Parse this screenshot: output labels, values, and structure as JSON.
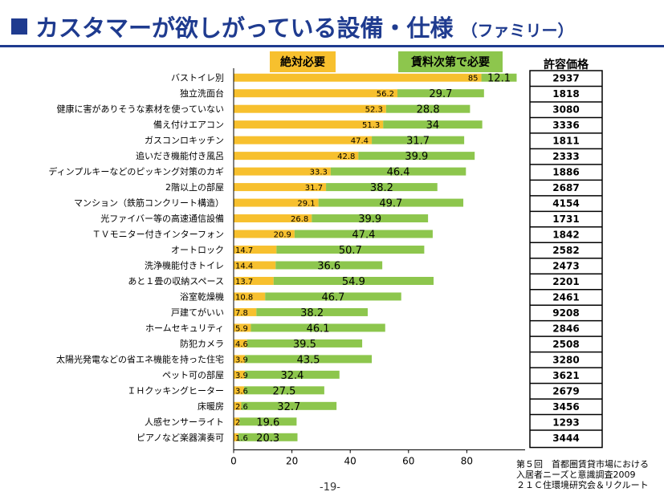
{
  "title": {
    "main": "カスタマーが欲しがっている設備・仕様",
    "sub": "（ファミリー）"
  },
  "legend": {
    "must": "絶対必要",
    "conditional": "賃料次第で必要"
  },
  "price_header": "許容価格",
  "colors": {
    "must": "#f7c02e",
    "conditional": "#8dc64d",
    "title": "#1f3b8f"
  },
  "footer": [
    "第５回　首都圏賃貸市場における",
    "入居者ニーズと意識調査2009",
    "２１Ｃ住環境研究会＆リクルート"
  ],
  "page_number": "-19-",
  "chart_data": {
    "type": "bar",
    "orientation": "horizontal",
    "stacked": true,
    "categories": [
      "バストイレ別",
      "独立洗面台",
      "健康に害がありそうな素材を使っていない",
      "備え付けエアコン",
      "ガスコンロキッチン",
      "追いだき機能付き風呂",
      "ディンプルキーなどのピッキング対策のカギ",
      "2階以上の部屋",
      "マンション（鉄筋コンクリート構造）",
      "光ファイバー等の高速通信設備",
      "ＴＶモニター付きインターフォン",
      "オートロック",
      "洗浄機能付きトイレ",
      "あと１畳の収納スペース",
      "浴室乾燥機",
      "戸建てがいい",
      "ホームセキュリティ",
      "防犯カメラ",
      "太陽光発電などの省エネ機能を持った住宅",
      "ペット可の部屋",
      "ＩＨクッキングヒーター",
      "床暖房",
      "人感センサーライト",
      "ピアノなど楽器演奏可"
    ],
    "series": [
      {
        "name": "絶対必要",
        "values": [
          85,
          56.2,
          52.3,
          51.3,
          47.4,
          42.8,
          33.3,
          31.7,
          29.1,
          26.8,
          20.9,
          14.7,
          14.4,
          13.7,
          10.8,
          7.8,
          5.9,
          4.6,
          3.9,
          3.9,
          3.6,
          2.6,
          2,
          1.6
        ]
      },
      {
        "name": "賃料次第で必要",
        "values": [
          12.1,
          29.7,
          28.8,
          34,
          31.7,
          39.9,
          46.4,
          38.2,
          49.7,
          39.9,
          47.4,
          50.7,
          36.6,
          54.9,
          46.7,
          38.2,
          46.1,
          39.5,
          43.5,
          32.4,
          27.5,
          32.7,
          19.6,
          20.3
        ]
      }
    ],
    "prices": [
      "2937",
      "1818",
      "3080",
      "3336",
      "1811",
      "2333",
      "1886",
      "2687",
      "4154",
      "1731",
      "1842",
      "2582",
      "2473",
      "2201",
      "2461",
      "9208",
      "2846",
      "2508",
      "3280",
      "3621",
      "2679",
      "3456",
      "1293",
      "3444"
    ],
    "xlim": [
      0,
      100
    ],
    "xticks": [
      "0",
      "20",
      "40",
      "60",
      "80"
    ],
    "grid": false,
    "legend_position": "top"
  }
}
